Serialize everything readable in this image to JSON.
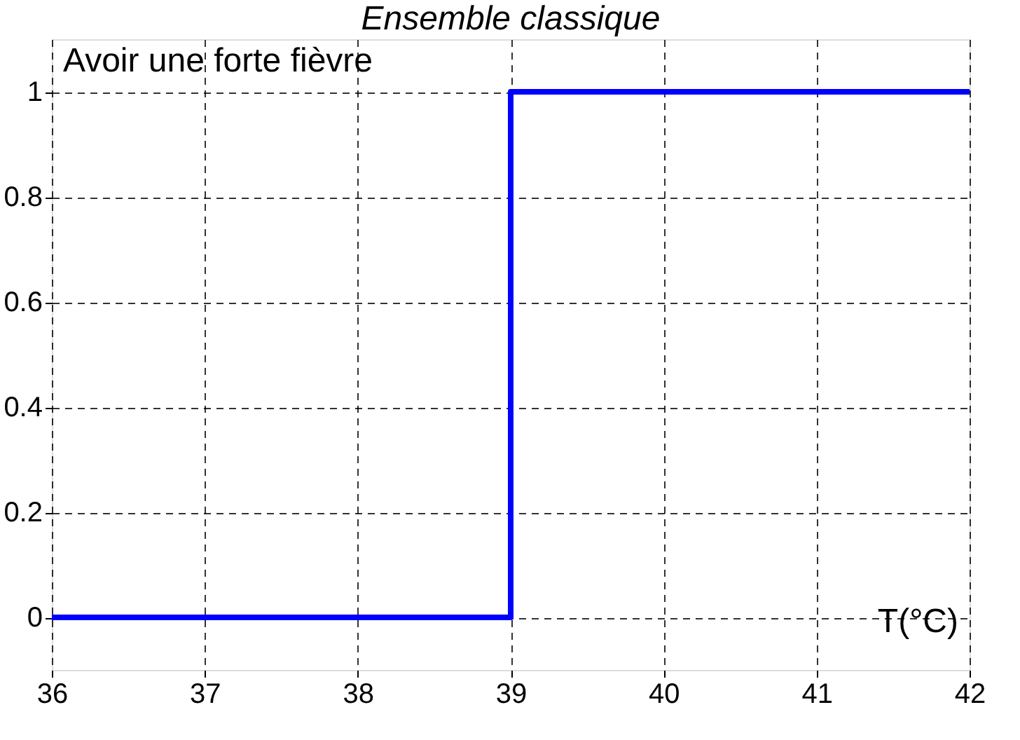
{
  "chart_data": {
    "type": "line",
    "title": "Ensemble classique",
    "xlabel": "T(°C)",
    "annotations": [
      "Avoir une forte fièvre"
    ],
    "x": [
      36,
      39,
      39,
      42
    ],
    "series": [
      {
        "color": "#0000ff",
        "values": [
          0,
          0,
          1,
          1
        ]
      }
    ],
    "xlim": [
      36,
      42
    ],
    "xticks": [
      36,
      37,
      38,
      39,
      40,
      41,
      42
    ],
    "ylim": [
      -0.1,
      1.1
    ],
    "yticks": [
      0,
      0.2,
      0.4,
      0.6,
      0.8,
      1
    ],
    "grid": true,
    "line_style": "solid",
    "marker": "none",
    "legend": false
  }
}
